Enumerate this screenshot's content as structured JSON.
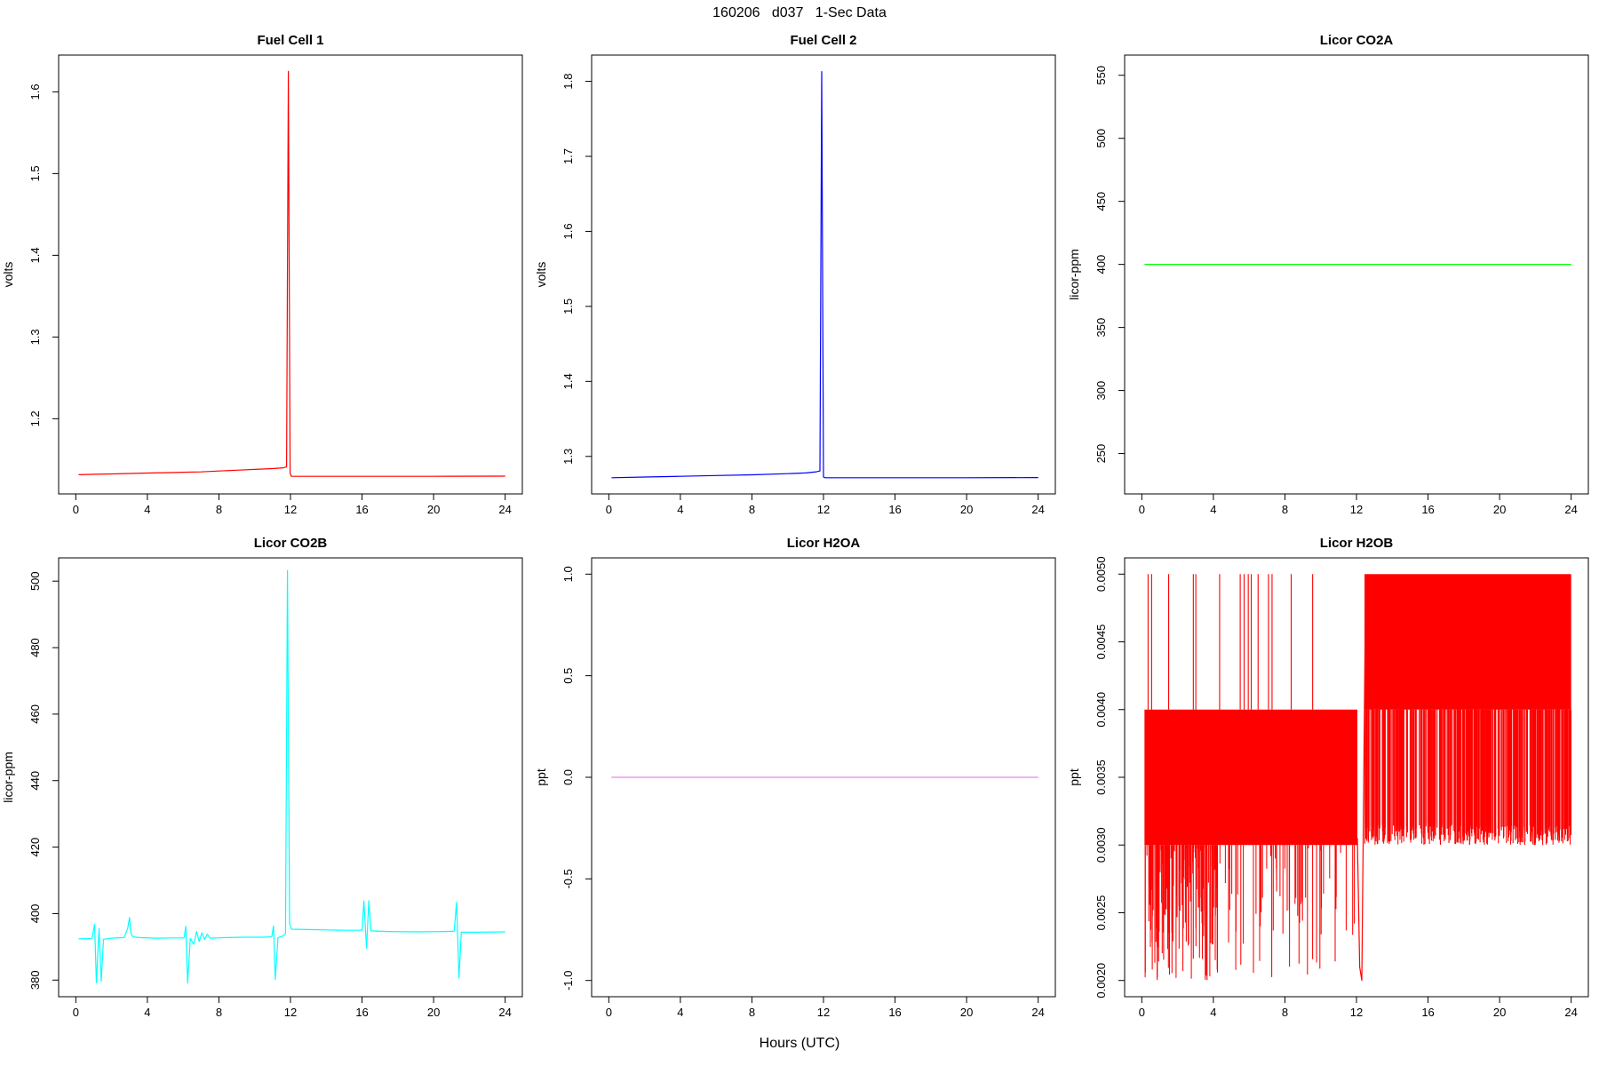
{
  "page": {
    "title": "160206   d037   1-Sec Data",
    "xlabel": "Hours (UTC)"
  },
  "chart_data": [
    {
      "id": "fuel-cell-1",
      "type": "line",
      "title": "Fuel Cell 1",
      "ylabel": "volts",
      "color": "#ff0000",
      "xlim": [
        -0.96,
        24.96
      ],
      "ylim": [
        1.108,
        1.645
      ],
      "xticks": [
        0,
        4,
        8,
        12,
        16,
        20,
        24
      ],
      "xtick_labels": [
        "0",
        "4",
        "8",
        "12",
        "16",
        "20",
        "24"
      ],
      "yticks": [
        1.2,
        1.3,
        1.4,
        1.5,
        1.6
      ],
      "ytick_labels": [
        "1.2",
        "1.3",
        "1.4",
        "1.5",
        "1.6"
      ],
      "elements": [
        {
          "kind": "polyline",
          "points": [
            [
              0.15,
              1.1315
            ],
            [
              1,
              1.132
            ],
            [
              2,
              1.1325
            ],
            [
              3,
              1.133
            ],
            [
              4,
              1.1335
            ],
            [
              5,
              1.134
            ],
            [
              6,
              1.1345
            ],
            [
              7,
              1.135
            ],
            [
              8,
              1.136
            ],
            [
              9,
              1.137
            ],
            [
              10,
              1.138
            ],
            [
              11,
              1.139
            ],
            [
              11.6,
              1.14
            ],
            [
              11.78,
              1.141
            ],
            [
              11.88,
              1.625
            ],
            [
              11.98,
              1.133
            ],
            [
              12.05,
              1.1295
            ],
            [
              13,
              1.1295
            ],
            [
              16,
              1.1295
            ],
            [
              20,
              1.1295
            ],
            [
              24,
              1.1297
            ]
          ]
        }
      ]
    },
    {
      "id": "fuel-cell-2",
      "type": "line",
      "title": "Fuel Cell 2",
      "ylabel": "volts",
      "color": "#0000ff",
      "xlim": [
        -0.96,
        24.96
      ],
      "ylim": [
        1.25,
        1.835
      ],
      "xticks": [
        0,
        4,
        8,
        12,
        16,
        20,
        24
      ],
      "xtick_labels": [
        "0",
        "4",
        "8",
        "12",
        "16",
        "20",
        "24"
      ],
      "yticks": [
        1.3,
        1.4,
        1.5,
        1.6,
        1.7,
        1.8
      ],
      "ytick_labels": [
        "1.3",
        "1.4",
        "1.5",
        "1.6",
        "1.7",
        "1.8"
      ],
      "elements": [
        {
          "kind": "polyline",
          "points": [
            [
              0.15,
              1.2715
            ],
            [
              2,
              1.2725
            ],
            [
              4,
              1.2735
            ],
            [
              6,
              1.2745
            ],
            [
              8,
              1.2755
            ],
            [
              10,
              1.277
            ],
            [
              11,
              1.278
            ],
            [
              11.6,
              1.2795
            ],
            [
              11.8,
              1.2805
            ],
            [
              11.9,
              1.813
            ],
            [
              12.0,
              1.2725
            ],
            [
              12.1,
              1.2715
            ],
            [
              16,
              1.2715
            ],
            [
              20,
              1.2715
            ],
            [
              24,
              1.2718
            ]
          ]
        }
      ]
    },
    {
      "id": "licor-co2a",
      "type": "line",
      "title": "Licor CO2A",
      "ylabel": "licor-ppm",
      "color": "#00ff00",
      "xlim": [
        -0.96,
        24.96
      ],
      "ylim": [
        218,
        566
      ],
      "xticks": [
        0,
        4,
        8,
        12,
        16,
        20,
        24
      ],
      "xtick_labels": [
        "0",
        "4",
        "8",
        "12",
        "16",
        "20",
        "24"
      ],
      "yticks": [
        250,
        300,
        350,
        400,
        450,
        500,
        550
      ],
      "ytick_labels": [
        "250",
        "300",
        "350",
        "400",
        "450",
        "500",
        "550"
      ],
      "elements": [
        {
          "kind": "polyline",
          "points": [
            [
              0.15,
              400
            ],
            [
              24,
              400
            ]
          ]
        }
      ]
    },
    {
      "id": "licor-co2b",
      "type": "line",
      "title": "Licor CO2B",
      "ylabel": "licor-ppm",
      "color": "#00ffff",
      "xlim": [
        -0.96,
        24.96
      ],
      "ylim": [
        375,
        507
      ],
      "xticks": [
        0,
        4,
        8,
        12,
        16,
        20,
        24
      ],
      "xtick_labels": [
        "0",
        "4",
        "8",
        "12",
        "16",
        "20",
        "24"
      ],
      "yticks": [
        380,
        400,
        420,
        440,
        460,
        480,
        500
      ],
      "ytick_labels": [
        "380",
        "400",
        "420",
        "440",
        "460",
        "480",
        "500"
      ],
      "elements": [
        {
          "kind": "polyline",
          "points": [
            [
              0.15,
              392.4
            ],
            [
              0.9,
              392.5
            ],
            [
              1.05,
              396.8
            ],
            [
              1.15,
              379.2
            ],
            [
              1.3,
              395.5
            ],
            [
              1.42,
              379.6
            ],
            [
              1.55,
              392.3
            ],
            [
              2.0,
              392.6
            ],
            [
              2.7,
              392.8
            ],
            [
              2.9,
              395.5
            ],
            [
              3.0,
              398.8
            ],
            [
              3.08,
              394
            ],
            [
              3.2,
              393
            ],
            [
              3.5,
              392.8
            ],
            [
              4.5,
              392.6
            ],
            [
              5.5,
              392.7
            ],
            [
              6.05,
              392.7
            ],
            [
              6.15,
              396.2
            ],
            [
              6.25,
              379.1
            ],
            [
              6.4,
              392.5
            ],
            [
              6.6,
              390.8
            ],
            [
              6.75,
              394.6
            ],
            [
              6.9,
              391.6
            ],
            [
              7.05,
              394.2
            ],
            [
              7.2,
              392.2
            ],
            [
              7.35,
              393.8
            ],
            [
              7.5,
              392.6
            ],
            [
              8.5,
              392.8
            ],
            [
              9.5,
              392.9
            ],
            [
              10.5,
              392.9
            ],
            [
              10.95,
              393
            ],
            [
              11.05,
              396.3
            ],
            [
              11.15,
              380.2
            ],
            [
              11.3,
              392.8
            ],
            [
              11.55,
              393.2
            ],
            [
              11.72,
              394
            ],
            [
              11.83,
              503.2
            ],
            [
              11.95,
              397
            ],
            [
              12.05,
              395.3
            ],
            [
              13,
              395.2
            ],
            [
              14,
              395.1
            ],
            [
              15,
              395.0
            ],
            [
              16.0,
              395.0
            ],
            [
              16.1,
              403.8
            ],
            [
              16.25,
              389.6
            ],
            [
              16.38,
              403.9
            ],
            [
              16.5,
              394.8
            ],
            [
              17.5,
              394.6
            ],
            [
              19,
              394.5
            ],
            [
              20.5,
              394.6
            ],
            [
              21.15,
              394.7
            ],
            [
              21.28,
              403.4
            ],
            [
              21.42,
              380.6
            ],
            [
              21.55,
              394.4
            ],
            [
              22.5,
              394.4
            ],
            [
              24,
              394.5
            ]
          ]
        }
      ]
    },
    {
      "id": "licor-h2oa",
      "type": "line",
      "title": "Licor H2OA",
      "ylabel": "ppt",
      "color": "#ee82ee",
      "xlim": [
        -0.96,
        24.96
      ],
      "ylim": [
        -1.08,
        1.08
      ],
      "xticks": [
        0,
        4,
        8,
        12,
        16,
        20,
        24
      ],
      "xtick_labels": [
        "0",
        "4",
        "8",
        "12",
        "16",
        "20",
        "24"
      ],
      "yticks": [
        -1.0,
        -0.5,
        0.0,
        0.5,
        1.0
      ],
      "ytick_labels": [
        "-1.0",
        "-0.5",
        "0.0",
        "0.5",
        "1.0"
      ],
      "elements": [
        {
          "kind": "polyline",
          "points": [
            [
              0.15,
              0
            ],
            [
              24,
              0
            ]
          ]
        }
      ]
    },
    {
      "id": "licor-h2ob",
      "type": "line",
      "title": "Licor H2OB",
      "ylabel": "ppt",
      "color": "#ff0000",
      "xlim": [
        -0.96,
        24.96
      ],
      "ylim": [
        0.00188,
        0.00512
      ],
      "xticks": [
        0,
        4,
        8,
        12,
        16,
        20,
        24
      ],
      "xtick_labels": [
        "0",
        "4",
        "8",
        "12",
        "16",
        "20",
        "24"
      ],
      "yticks": [
        0.002,
        0.0025,
        0.003,
        0.0035,
        0.004,
        0.0045,
        0.005
      ],
      "ytick_labels": [
        "0.0020",
        "0.0025",
        "0.0030",
        "0.0035",
        "0.0040",
        "0.0045",
        "0.0050"
      ],
      "elements": [
        {
          "kind": "band",
          "x0": 0.15,
          "x1": 12.05,
          "y0": 0.003,
          "y1": 0.004
        },
        {
          "kind": "vlines_random",
          "x0": 0.15,
          "x1": 4.3,
          "count": 160,
          "y_from": 0.003,
          "y_to_min": 0.002,
          "y_to_max": 0.00298,
          "seed": 7
        },
        {
          "kind": "vlines_random",
          "x0": 4.3,
          "x1": 12.0,
          "count": 60,
          "y_from": 0.003,
          "y_to_min": 0.002,
          "y_to_max": 0.00298,
          "seed": 11
        },
        {
          "kind": "vlines",
          "xs": [
            0.35,
            0.55,
            1.5,
            2.88,
            3.02,
            4.35,
            5.5,
            5.72,
            5.95,
            6.12,
            6.5,
            7.08,
            7.28,
            8.35,
            9.55
          ],
          "y0": 0.004,
          "y1": 0.005
        },
        {
          "kind": "polyline",
          "points": [
            [
              12.05,
              0.00305
            ],
            [
              12.18,
              0.0021
            ],
            [
              12.3,
              0.002
            ],
            [
              12.5,
              0.0048
            ]
          ]
        },
        {
          "kind": "band",
          "x0": 12.45,
          "x1": 24.0,
          "y0": 0.004,
          "y1": 0.005
        },
        {
          "kind": "vlines_random",
          "x0": 12.45,
          "x1": 24.0,
          "count": 420,
          "y_from": 0.004,
          "y_to_min": 0.003,
          "y_to_max": 0.00315,
          "seed": 23
        }
      ]
    }
  ]
}
